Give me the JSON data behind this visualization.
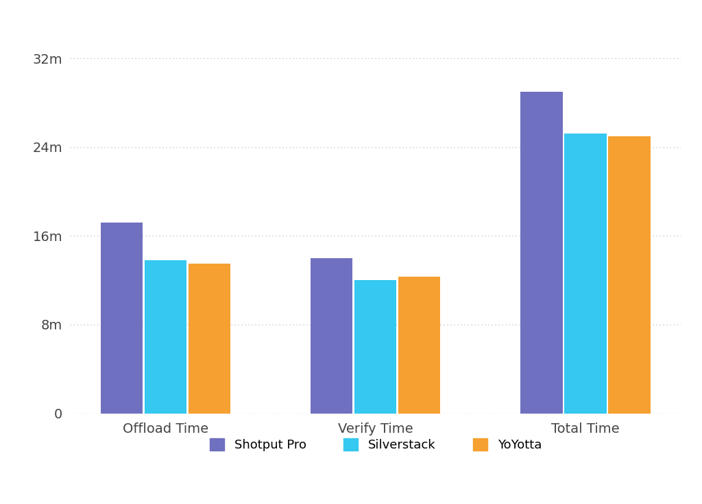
{
  "categories": [
    "Offload Time",
    "Verify Time",
    "Total Time"
  ],
  "series": {
    "Shotput Pro": [
      17.2,
      14.0,
      29.0
    ],
    "Silverstack": [
      13.8,
      12.0,
      25.2
    ],
    "YoYotta": [
      13.5,
      12.3,
      25.0
    ]
  },
  "colors": {
    "Shotput Pro": "#7070C0",
    "Silverstack": "#35C8F0",
    "YoYotta": "#F5A030"
  },
  "yticks": [
    0,
    8,
    16,
    24,
    32
  ],
  "ytick_labels": [
    "0",
    "8m",
    "16m",
    "24m",
    "32m"
  ],
  "ylim": [
    0,
    35
  ],
  "background_color": "#FFFFFF",
  "grid_color": "#BBBBBB",
  "grid_style": "dotted",
  "bar_width": 0.22,
  "legend_order": [
    "Shotput Pro",
    "Silverstack",
    "YoYotta"
  ],
  "tick_fontsize": 14,
  "legend_fontsize": 13,
  "xlabel_fontsize": 14
}
